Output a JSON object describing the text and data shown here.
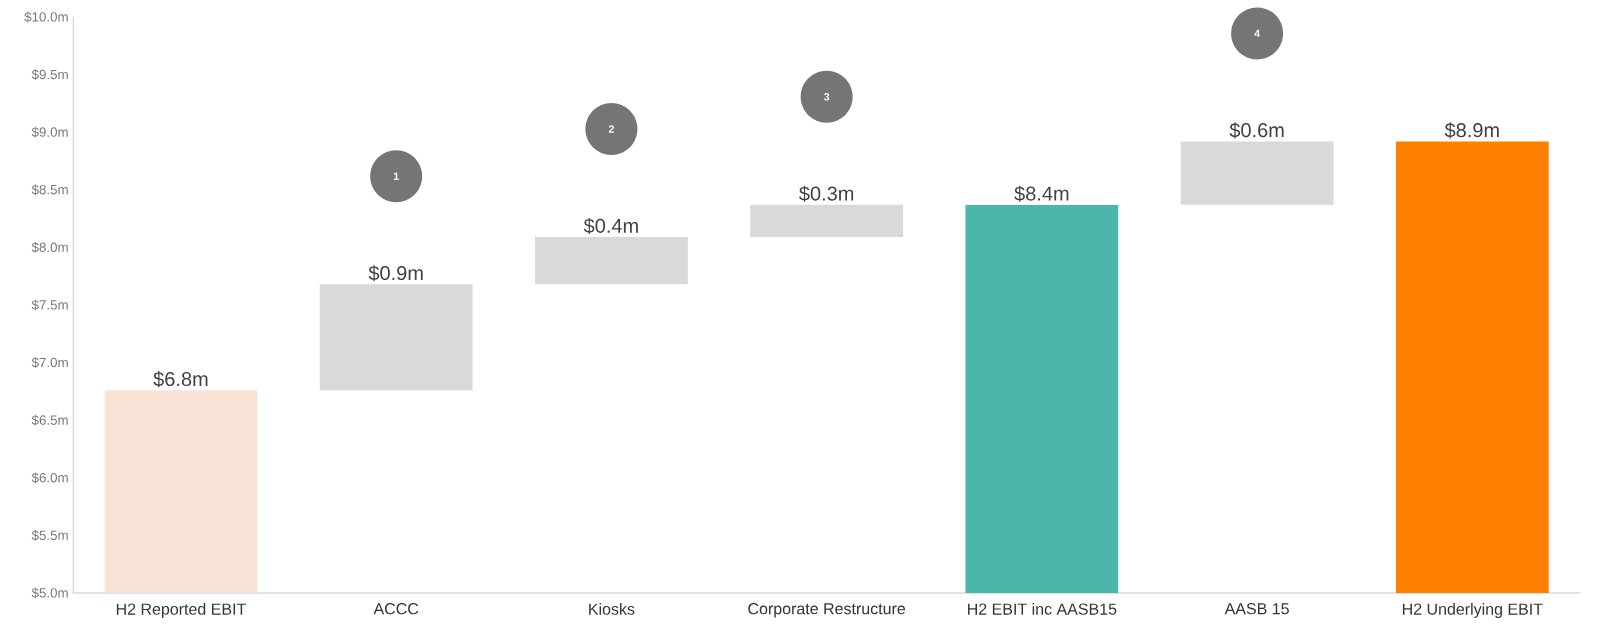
{
  "chart_data": {
    "type": "bar",
    "categories": [
      "H2 Reported EBIT",
      "ACCC",
      "Kiosks",
      "Corporate Restructure",
      "H2 EBIT inc AASB15",
      "AASB 15",
      "H2 Underlying EBIT"
    ],
    "values": [
      6.76,
      0.92,
      0.41,
      0.28,
      8.37,
      0.55,
      8.92
    ],
    "base": [
      null,
      6.76,
      7.68,
      8.09,
      null,
      8.37,
      null
    ],
    "colors": [
      "#fae3d6",
      "#d9d9d9",
      "#d9d9d9",
      "#d9d9d9",
      "#4db6ac",
      "#d9d9d9",
      "#ff8000"
    ],
    "value_labels": [
      "$6.8m",
      "$0.9m",
      "$0.4m",
      "$0.3m",
      "$8.4m",
      "$0.6m",
      "$8.9m"
    ],
    "ylim": [
      5.0,
      10.0
    ],
    "yticks": [
      {
        "value": 5.0,
        "label": "$5.0m"
      },
      {
        "value": 5.5,
        "label": "$5.5m"
      },
      {
        "value": 6.0,
        "label": "$6.0m"
      },
      {
        "value": 6.5,
        "label": "$6.5m"
      },
      {
        "value": 7.0,
        "label": "$7.0m"
      },
      {
        "value": 7.5,
        "label": "$7.5m"
      },
      {
        "value": 8.0,
        "label": "$8.0m"
      },
      {
        "value": 8.5,
        "label": "$8.5m"
      },
      {
        "value": 9.0,
        "label": "$9.0m"
      },
      {
        "value": 9.5,
        "label": "$9.5m"
      },
      {
        "value": 10.0,
        "label": "$10.0m"
      }
    ],
    "annotations": [
      "1",
      "2",
      "3",
      "4"
    ],
    "grid": false
  }
}
